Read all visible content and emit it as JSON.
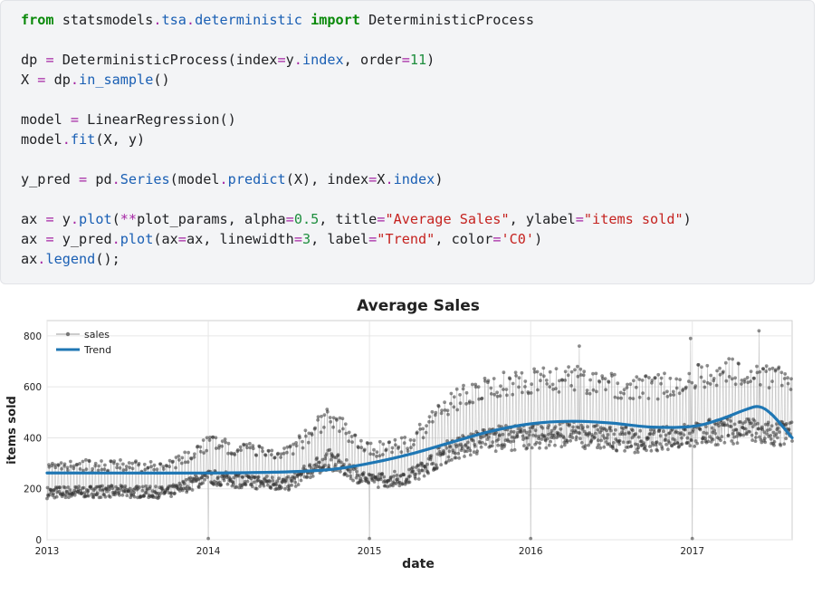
{
  "code": [
    [
      [
        "kw",
        "from"
      ],
      [
        "plain",
        " statsmodels"
      ],
      [
        "op",
        "."
      ],
      [
        "attr",
        "tsa"
      ],
      [
        "op",
        "."
      ],
      [
        "attr",
        "deterministic"
      ],
      [
        "plain",
        " "
      ],
      [
        "kw",
        "import"
      ],
      [
        "plain",
        " DeterministicProcess"
      ]
    ],
    [],
    [
      [
        "plain",
        "dp "
      ],
      [
        "op",
        "="
      ],
      [
        "plain",
        " DeterministicProcess(index"
      ],
      [
        "op",
        "="
      ],
      [
        "plain",
        "y"
      ],
      [
        "op",
        "."
      ],
      [
        "attr",
        "index"
      ],
      [
        "plain",
        ", order"
      ],
      [
        "op",
        "="
      ],
      [
        "num",
        "11"
      ],
      [
        "plain",
        ")"
      ]
    ],
    [
      [
        "plain",
        "X "
      ],
      [
        "op",
        "="
      ],
      [
        "plain",
        " dp"
      ],
      [
        "op",
        "."
      ],
      [
        "attr",
        "in_sample"
      ],
      [
        "plain",
        "()"
      ]
    ],
    [],
    [
      [
        "plain",
        "model "
      ],
      [
        "op",
        "="
      ],
      [
        "plain",
        " LinearRegression()"
      ]
    ],
    [
      [
        "plain",
        "model"
      ],
      [
        "op",
        "."
      ],
      [
        "attr",
        "fit"
      ],
      [
        "plain",
        "(X, y)"
      ]
    ],
    [],
    [
      [
        "plain",
        "y_pred "
      ],
      [
        "op",
        "="
      ],
      [
        "plain",
        " pd"
      ],
      [
        "op",
        "."
      ],
      [
        "attr",
        "Series"
      ],
      [
        "plain",
        "(model"
      ],
      [
        "op",
        "."
      ],
      [
        "attr",
        "predict"
      ],
      [
        "plain",
        "(X), index"
      ],
      [
        "op",
        "="
      ],
      [
        "plain",
        "X"
      ],
      [
        "op",
        "."
      ],
      [
        "attr",
        "index"
      ],
      [
        "plain",
        ")"
      ]
    ],
    [],
    [
      [
        "plain",
        "ax "
      ],
      [
        "op",
        "="
      ],
      [
        "plain",
        " y"
      ],
      [
        "op",
        "."
      ],
      [
        "attr",
        "plot"
      ],
      [
        "plain",
        "("
      ],
      [
        "op",
        "**"
      ],
      [
        "plain",
        "plot_params, alpha"
      ],
      [
        "op",
        "="
      ],
      [
        "num",
        "0.5"
      ],
      [
        "plain",
        ", title"
      ],
      [
        "op",
        "="
      ],
      [
        "str",
        "\"Average Sales\""
      ],
      [
        "plain",
        ", ylabel"
      ],
      [
        "op",
        "="
      ],
      [
        "str",
        "\"items sold\""
      ],
      [
        "plain",
        ")"
      ]
    ],
    [
      [
        "plain",
        "ax "
      ],
      [
        "op",
        "="
      ],
      [
        "plain",
        " y_pred"
      ],
      [
        "op",
        "."
      ],
      [
        "attr",
        "plot"
      ],
      [
        "plain",
        "(ax"
      ],
      [
        "op",
        "="
      ],
      [
        "plain",
        "ax, linewidth"
      ],
      [
        "op",
        "="
      ],
      [
        "num",
        "3"
      ],
      [
        "plain",
        ", label"
      ],
      [
        "op",
        "="
      ],
      [
        "str",
        "\"Trend\""
      ],
      [
        "plain",
        ", color"
      ],
      [
        "op",
        "="
      ],
      [
        "str",
        "'C0'"
      ],
      [
        "plain",
        ")"
      ]
    ],
    [
      [
        "plain",
        "ax"
      ],
      [
        "op",
        "."
      ],
      [
        "attr",
        "legend"
      ],
      [
        "plain",
        "();"
      ]
    ]
  ],
  "chart_data": {
    "type": "line",
    "title": "Average Sales",
    "xlabel": "date",
    "ylabel": "items sold",
    "xlim": [
      "2013-01-01",
      "2017-08-15"
    ],
    "ylim": [
      0,
      860
    ],
    "x_ticks": [
      "2013",
      "2014",
      "2015",
      "2016",
      "2017"
    ],
    "y_ticks": [
      0,
      200,
      400,
      600,
      800
    ],
    "grid": true,
    "legend_placement": "upper-left",
    "series": [
      {
        "name": "sales",
        "style": "points-with-thin-line",
        "color": "#555555",
        "alpha": 0.5,
        "generated": true,
        "approx_level_by_month": [
          [
            "2013-01",
            210
          ],
          [
            "2013-04",
            215
          ],
          [
            "2013-07",
            215
          ],
          [
            "2013-10",
            210
          ],
          [
            "2014-01",
            280
          ],
          [
            "2014-04",
            260
          ],
          [
            "2014-07",
            250
          ],
          [
            "2014-10",
            360
          ],
          [
            "2015-01",
            260
          ],
          [
            "2015-04",
            280
          ],
          [
            "2015-07",
            400
          ],
          [
            "2015-10",
            450
          ],
          [
            "2016-01",
            460
          ],
          [
            "2016-04",
            470
          ],
          [
            "2016-07",
            450
          ],
          [
            "2016-10",
            440
          ],
          [
            "2017-01",
            470
          ],
          [
            "2017-04",
            490
          ],
          [
            "2017-07",
            470
          ]
        ],
        "outliers": [
          [
            "2014-01-01",
            5
          ],
          [
            "2015-01-01",
            5
          ],
          [
            "2016-01-01",
            5
          ],
          [
            "2017-01-01",
            5
          ],
          [
            "2017-06-01",
            820
          ],
          [
            "2016-12-28",
            790
          ],
          [
            "2016-04-20",
            760
          ]
        ]
      },
      {
        "name": "Trend",
        "style": "line",
        "color": "#1f77b4",
        "linewidth": 3,
        "points": [
          [
            "2013-01-01",
            262
          ],
          [
            "2013-06-01",
            262
          ],
          [
            "2014-01-01",
            262
          ],
          [
            "2014-06-01",
            265
          ],
          [
            "2014-10-01",
            275
          ],
          [
            "2015-01-01",
            300
          ],
          [
            "2015-04-01",
            335
          ],
          [
            "2015-07-01",
            380
          ],
          [
            "2015-10-01",
            425
          ],
          [
            "2016-01-01",
            455
          ],
          [
            "2016-04-01",
            465
          ],
          [
            "2016-07-01",
            458
          ],
          [
            "2016-10-01",
            442
          ],
          [
            "2017-01-01",
            445
          ],
          [
            "2017-03-01",
            470
          ],
          [
            "2017-05-01",
            510
          ],
          [
            "2017-06-01",
            522
          ],
          [
            "2017-07-01",
            490
          ],
          [
            "2017-08-15",
            400
          ]
        ]
      }
    ]
  }
}
